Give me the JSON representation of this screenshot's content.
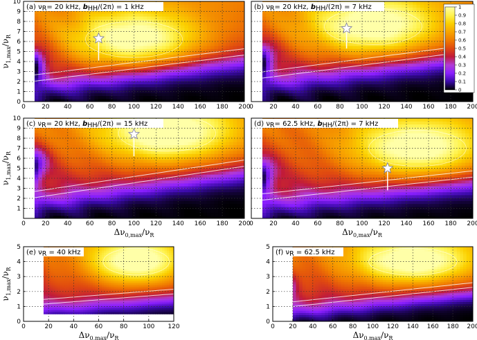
{
  "figure": {
    "colormap": [
      "#000000",
      "#3a0aa8",
      "#8a1fff",
      "#b23bd6",
      "#c01a3a",
      "#e04a10",
      "#f07c00",
      "#f8a500",
      "#fbd000",
      "#fff34f",
      "#ffffa8"
    ],
    "colorbar": {
      "ticks": [
        "1",
        "0.9",
        "0.8",
        "0.7",
        "0.6",
        "0.5",
        "0.4",
        "0.3",
        "0.2",
        "0.1",
        "0"
      ]
    }
  },
  "chart_data": [
    {
      "type": "heatmap",
      "title_html": "(a) νR= 20 kHz, bHH/(2π) = 1 kHz",
      "title_parts": [
        "(a) ν",
        "R",
        "= 20 kHz, ",
        "b",
        "HH",
        "/(2π) = 1 kHz"
      ],
      "xlim": [
        0,
        200
      ],
      "ylim": [
        0,
        10
      ],
      "xticks": [
        "0",
        "20",
        "40",
        "60",
        "80",
        "100",
        "120",
        "140",
        "160",
        "180",
        "200"
      ],
      "yticks": [
        "0",
        "1",
        "2",
        "3",
        "4",
        "5",
        "6",
        "7",
        "8",
        "9",
        "10"
      ],
      "ylabel": [
        "ν",
        "1,max",
        "/ν",
        "R"
      ],
      "xlabel": "",
      "xdata_min": 10,
      "star": {
        "x": 68,
        "y": 6.3,
        "stem_bottom": 4.1
      },
      "field": {
        "slope": 0.025,
        "y0": 1.0,
        "bandlow": 1.2,
        "peak_x": 100,
        "peak_y": 6.2
      }
    },
    {
      "type": "heatmap",
      "title_parts": [
        "(b) ν",
        "R",
        "= 20 kHz, ",
        "b",
        "HH",
        "/(2π) = 7 kHz"
      ],
      "xlim": [
        0,
        200
      ],
      "ylim": [
        0,
        10
      ],
      "xticks": [
        "0",
        "20",
        "40",
        "60",
        "80",
        "100",
        "120",
        "140",
        "160",
        "180",
        "200"
      ],
      "yticks": [],
      "xdata_min": 10,
      "star": {
        "x": 86,
        "y": 7.3,
        "stem_bottom": 5.3
      },
      "field": {
        "slope": 0.026,
        "y0": 1.4,
        "bandlow": 1.5,
        "peak_x": 110,
        "peak_y": 7.5
      }
    },
    {
      "type": "heatmap",
      "title_parts": [
        "(c) ν",
        "R",
        "= 20 kHz, ",
        "b",
        "HH",
        "/(2π) = 15 kHz"
      ],
      "xlim": [
        0,
        200
      ],
      "ylim": [
        0,
        10
      ],
      "xticks": [
        "0",
        "20",
        "40",
        "60",
        "80",
        "100",
        "120",
        "140",
        "160",
        "180",
        "200"
      ],
      "yticks": [
        "1",
        "2",
        "3",
        "4",
        "5",
        "6",
        "7",
        "8",
        "9",
        "10"
      ],
      "ylabel": [
        "ν",
        "1,max",
        "/ν",
        "R"
      ],
      "xlabel": [
        "Δν",
        "0,max",
        "/ν",
        "R"
      ],
      "xdata_min": 10,
      "star": {
        "x": 100,
        "y": 8.4,
        "stem_bottom": 6.2
      },
      "field": {
        "slope": 0.03,
        "y0": 2.4,
        "bandlow": 1.2,
        "peak_x": 130,
        "peak_y": 8.5
      }
    },
    {
      "type": "heatmap",
      "title_parts": [
        "(d) ν",
        "R",
        "= 62.5 kHz, ",
        "b",
        "HH",
        "/(2π) = 7 kHz"
      ],
      "xlim": [
        0,
        200
      ],
      "ylim": [
        0,
        10
      ],
      "xticks": [
        "0",
        "20",
        "40",
        "60",
        "80",
        "100",
        "120",
        "140",
        "160",
        "180",
        "200"
      ],
      "yticks": [],
      "xlabel": [
        "Δν",
        "0,max",
        "/ν",
        "R"
      ],
      "xdata_min": 10,
      "star": {
        "x": 123,
        "y": 5.0,
        "stem_bottom": 2.8
      },
      "field": {
        "slope": 0.022,
        "y0": 1.6,
        "bandlow": 1.0,
        "peak_x": 150,
        "peak_y": 7.0
      }
    },
    {
      "type": "heatmap",
      "title_parts": [
        "(e) ν",
        "R",
        " = 40 kHz"
      ],
      "xlim": [
        0,
        120
      ],
      "ylim": [
        0,
        5
      ],
      "xticks": [
        "0",
        "20",
        "40",
        "60",
        "80",
        "100",
        "120"
      ],
      "yticks": [
        "0",
        "1",
        "2",
        "3",
        "4",
        "5"
      ],
      "ylabel": [
        "ν",
        "1,max",
        "/ν",
        "R"
      ],
      "xlabel": [
        "Δν",
        "0,max",
        "/ν",
        "R"
      ],
      "xdata_min": 16,
      "ydata_min": 0.5,
      "field": {
        "slope": 0.012,
        "y0": 2.0,
        "bandlow": 0.6,
        "peak_x": 90,
        "peak_y": 4.0
      }
    },
    {
      "type": "heatmap",
      "title_parts": [
        "(f) ν",
        "R",
        " = 62.5 kHz"
      ],
      "xlim": [
        0,
        200
      ],
      "ylim": [
        0,
        5
      ],
      "xticks": [
        "0",
        "20",
        "40",
        "60",
        "80",
        "100",
        "120",
        "140",
        "160",
        "180",
        "200"
      ],
      "yticks": [
        "0",
        "1",
        "2",
        "3",
        "4",
        "5"
      ],
      "xlabel": [
        "Δν",
        "0,max",
        "/ν",
        "R"
      ],
      "xdata_min": 20,
      "field": {
        "slope": 0.013,
        "y0": 1.0,
        "bandlow": 0.4,
        "peak_x": 140,
        "peak_y": 4.0
      }
    }
  ]
}
